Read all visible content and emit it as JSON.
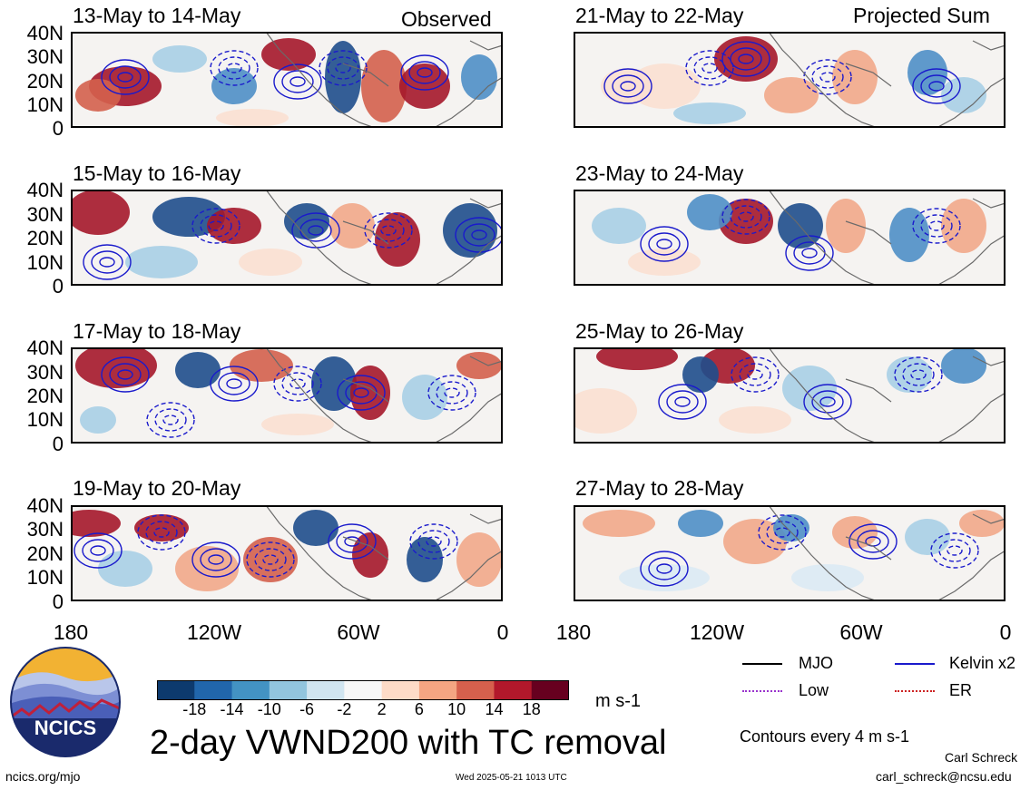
{
  "left_column": {
    "label": "Observed",
    "panels": [
      {
        "title": "13-May to 14-May"
      },
      {
        "title": "15-May to 16-May"
      },
      {
        "title": "17-May to 18-May"
      },
      {
        "title": "19-May to 20-May"
      }
    ]
  },
  "right_column": {
    "label": "Projected Sum",
    "panels": [
      {
        "title": "21-May to 22-May"
      },
      {
        "title": "23-May to 24-May"
      },
      {
        "title": "25-May to 26-May"
      },
      {
        "title": "27-May to 28-May"
      }
    ]
  },
  "y_ticks": [
    "40N",
    "30N",
    "20N",
    "10N",
    "0"
  ],
  "x_ticks": [
    "180",
    "120W",
    "60W",
    "0"
  ],
  "colorbar": {
    "labels": [
      "-18",
      "-14",
      "-10",
      "-6",
      "-2",
      "2",
      "6",
      "10",
      "14",
      "18"
    ],
    "colors": [
      "#0d3a6e",
      "#2166ac",
      "#4393c3",
      "#92c5de",
      "#d1e5f0",
      "#f7f7f7",
      "#fddbc7",
      "#f4a582",
      "#d6604d",
      "#b2182b",
      "#67001f"
    ],
    "units": "m s-1"
  },
  "main_title": "2-day VWND200 with TC removal",
  "legend": {
    "items": [
      {
        "label": "MJO",
        "color": "#000000"
      },
      {
        "label": "Kelvin x2",
        "color": "#1a1acc"
      },
      {
        "label": "Low",
        "color": "#9933cc"
      },
      {
        "label": "ER",
        "color": "#cc2222"
      }
    ],
    "contour_note": "Contours every 4 m s-1"
  },
  "logo": {
    "text": "NCICS"
  },
  "footer": {
    "website": "ncics.org/mjo",
    "timestamp": "Wed 2025-05-21 1013 UTC",
    "author": "Carl Schreck",
    "email": "carl_schreck@ncsu.edu"
  }
}
